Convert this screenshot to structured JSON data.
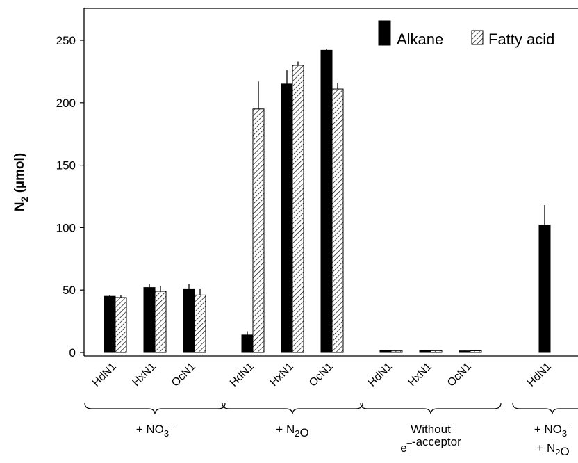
{
  "chart_data": {
    "type": "bar",
    "ylabel": "N2 (µmol)",
    "ylabel_main": "N",
    "ylabel_sub": "2",
    "ylabel_rest": " (µmol)",
    "ylim": [
      0,
      260
    ],
    "yticks": [
      0,
      50,
      100,
      150,
      200,
      250
    ],
    "grid": false,
    "legend_position": "top-right",
    "series": [
      {
        "name": "Alkane",
        "pattern": "solid",
        "color": "#000000"
      },
      {
        "name": "Fatty acid",
        "pattern": "hatched",
        "color": "#ffffff"
      }
    ],
    "groups": [
      {
        "label_parts": [
          {
            "t": "+ NO"
          },
          {
            "t": "3",
            "sub": true
          },
          {
            "t": "–",
            "sup": true
          }
        ],
        "label_line2": null,
        "categories": [
          {
            "label": "HdN1",
            "alkane": 45,
            "alkane_err": 1,
            "fatty_acid": 44,
            "fatty_acid_err": 2
          },
          {
            "label": "HxN1",
            "alkane": 52,
            "alkane_err": 3,
            "fatty_acid": 49,
            "fatty_acid_err": 4
          },
          {
            "label": "OcN1",
            "alkane": 51,
            "alkane_err": 4,
            "fatty_acid": 46,
            "fatty_acid_err": 5
          }
        ]
      },
      {
        "label_parts": [
          {
            "t": "+ N"
          },
          {
            "t": "2",
            "sub": true
          },
          {
            "t": "O"
          }
        ],
        "label_line2": null,
        "categories": [
          {
            "label": "HdN1",
            "alkane": 14,
            "alkane_err": 3,
            "fatty_acid": 195,
            "fatty_acid_err": 22
          },
          {
            "label": "HxN1",
            "alkane": 215,
            "alkane_err": 11,
            "fatty_acid": 230,
            "fatty_acid_err": 3
          },
          {
            "label": "OcN1",
            "alkane": 242,
            "alkane_err": 1,
            "fatty_acid": 211,
            "fatty_acid_err": 5
          }
        ]
      },
      {
        "label_parts": [
          {
            "t": "Without"
          }
        ],
        "label_line2": [
          {
            "t": "e"
          },
          {
            "t": "–",
            "sup": true
          },
          {
            "t": "-acceptor"
          }
        ],
        "categories": [
          {
            "label": "HdN1",
            "alkane": 1.5,
            "alkane_err": 0.3,
            "fatty_acid": 1.3,
            "fatty_acid_err": 0.3
          },
          {
            "label": "HxN1",
            "alkane": 1.4,
            "alkane_err": 0.3,
            "fatty_acid": 1.5,
            "fatty_acid_err": 0.3
          },
          {
            "label": "OcN1",
            "alkane": 1.3,
            "alkane_err": 0.3,
            "fatty_acid": 1.4,
            "fatty_acid_err": 0.3
          }
        ]
      },
      {
        "label_parts": [
          {
            "t": "+ NO"
          },
          {
            "t": "3",
            "sub": true
          },
          {
            "t": "–",
            "sup": true
          }
        ],
        "label_line2": [
          {
            "t": "+ N"
          },
          {
            "t": "2",
            "sub": true
          },
          {
            "t": "O"
          }
        ],
        "categories": [
          {
            "label": "HdN1",
            "alkane": 102,
            "alkane_err": 16,
            "fatty_acid": null,
            "fatty_acid_err": null
          }
        ]
      }
    ]
  }
}
